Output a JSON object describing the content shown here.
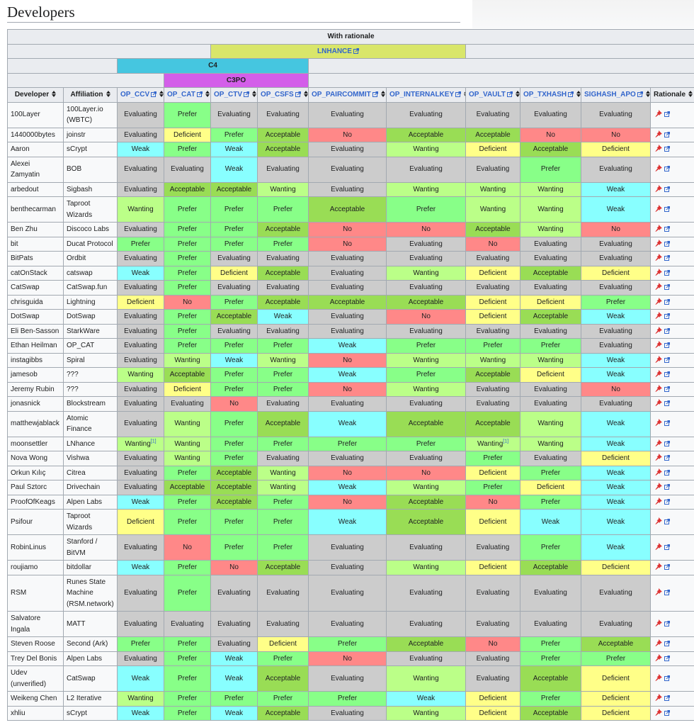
{
  "page": {
    "title": "Developers"
  },
  "table": {
    "caption": "With rationale",
    "groups": {
      "lnhance": "LNHANCE",
      "c4": "C4",
      "c3po": "C3PO"
    },
    "columns": [
      "Developer",
      "Affiliation",
      "OP_CCV",
      "OP_CAT",
      "OP_CTV",
      "OP_CSFS",
      "OP_PAIRCOMMIT",
      "OP_INTERNALKEY",
      "OP_VAULT",
      "OP_TXHASH",
      "SIGHASH_APO",
      "Rationale"
    ],
    "rows": [
      [
        "100Layer",
        "100Layer.io (WBTC)",
        "Evaluating",
        "Prefer",
        "Evaluating",
        "Evaluating",
        "Evaluating",
        "Evaluating",
        "Evaluating",
        "Evaluating",
        "Evaluating"
      ],
      [
        "1440000bytes",
        "joinstr",
        "Evaluating",
        "Deficient",
        "Prefer",
        "Acceptable",
        "No",
        "Acceptable",
        "Acceptable",
        "No",
        "No"
      ],
      [
        "Aaron",
        "sCrypt",
        "Weak",
        "Prefer",
        "Weak",
        "Acceptable",
        "Evaluating",
        "Wanting",
        "Deficient",
        "Acceptable",
        "Deficient"
      ],
      [
        "Alexei Zamyatin",
        "BOB",
        "Evaluating",
        "Evaluating",
        "Weak",
        "Evaluating",
        "Evaluating",
        "Evaluating",
        "Evaluating",
        "Prefer",
        "Evaluating"
      ],
      [
        "arbedout",
        "Sigbash",
        "Evaluating",
        "Acceptable",
        "Acceptable",
        "Wanting",
        "Evaluating",
        "Wanting",
        "Wanting",
        "Wanting",
        "Weak"
      ],
      [
        "benthecarman",
        "Taproot Wizards",
        "Wanting",
        "Prefer",
        "Prefer",
        "Prefer",
        "Acceptable",
        "Prefer",
        "Wanting",
        "Wanting",
        "Weak"
      ],
      [
        "Ben Zhu",
        "Discoco Labs",
        "Evaluating",
        "Prefer",
        "Prefer",
        "Acceptable",
        "No",
        "No",
        "Acceptable",
        "Wanting",
        "No"
      ],
      [
        "bit",
        "Ducat Protocol",
        "Prefer",
        "Prefer",
        "Prefer",
        "Prefer",
        "No",
        "Evaluating",
        "No",
        "Evaluating",
        "Evaluating"
      ],
      [
        "BitPats",
        "Ordbit",
        "Evaluating",
        "Prefer",
        "Evaluating",
        "Evaluating",
        "Evaluating",
        "Evaluating",
        "Evaluating",
        "Evaluating",
        "Evaluating"
      ],
      [
        "catOnStack",
        "catswap",
        "Weak",
        "Prefer",
        "Deficient",
        "Acceptable",
        "Evaluating",
        "Wanting",
        "Deficient",
        "Acceptable",
        "Deficient"
      ],
      [
        "CatSwap",
        "CatSwap.fun",
        "Evaluating",
        "Prefer",
        "Evaluating",
        "Evaluating",
        "Evaluating",
        "Evaluating",
        "Evaluating",
        "Evaluating",
        "Evaluating"
      ],
      [
        "chrisguida",
        "Lightning",
        "Deficient",
        "No",
        "Prefer",
        "Acceptable",
        "Acceptable",
        "Acceptable",
        "Deficient",
        "Deficient",
        "Prefer"
      ],
      [
        "DotSwap",
        "DotSwap",
        "Evaluating",
        "Prefer",
        "Acceptable",
        "Weak",
        "Evaluating",
        "No",
        "Deficient",
        "Acceptable",
        "Weak"
      ],
      [
        "Eli Ben-Sasson",
        "StarkWare",
        "Evaluating",
        "Prefer",
        "Evaluating",
        "Evaluating",
        "Evaluating",
        "Evaluating",
        "Evaluating",
        "Evaluating",
        "Evaluating"
      ],
      [
        "Ethan Heilman",
        "OP_CAT",
        "Evaluating",
        "Prefer",
        "Prefer",
        "Prefer",
        "Weak",
        "Prefer",
        "Prefer",
        "Prefer",
        "Evaluating"
      ],
      [
        "instagibbs",
        "Spiral",
        "Evaluating",
        "Wanting",
        "Weak",
        "Wanting",
        "No",
        "Wanting",
        "Wanting",
        "Wanting",
        "Weak"
      ],
      [
        "jamesob",
        "???",
        "Wanting",
        "Acceptable",
        "Prefer",
        "Prefer",
        "Weak",
        "Prefer",
        "Acceptable",
        "Deficient",
        "Weak"
      ],
      [
        "Jeremy Rubin",
        "???",
        "Evaluating",
        "Deficient",
        "Prefer",
        "Prefer",
        "No",
        "Wanting",
        "Evaluating",
        "Evaluating",
        "No"
      ],
      [
        "jonasnick",
        "Blockstream",
        "Evaluating",
        "Evaluating",
        "No",
        "Evaluating",
        "Evaluating",
        "Evaluating",
        "Evaluating",
        "Evaluating",
        "Evaluating"
      ],
      [
        "matthewjablack",
        "Atomic Finance",
        "Evaluating",
        "Wanting",
        "Prefer",
        "Acceptable",
        "Weak",
        "Acceptable",
        "Acceptable",
        "Wanting",
        "Weak"
      ],
      [
        "moonsettler",
        "LNhance",
        {
          "text": "Wanting",
          "ref": "[1]"
        },
        "Wanting",
        "Prefer",
        "Prefer",
        "Prefer",
        "Prefer",
        {
          "text": "Wanting",
          "ref": "[1]"
        },
        "Wanting",
        "Weak"
      ],
      [
        "Nova Wong",
        "Vishwa",
        "Evaluating",
        "Wanting",
        "Prefer",
        "Evaluating",
        "Evaluating",
        "Evaluating",
        "Prefer",
        "Evaluating",
        "Deficient"
      ],
      [
        "Orkun Kılıç",
        "Citrea",
        "Evaluating",
        "Prefer",
        "Acceptable",
        "Wanting",
        "No",
        "No",
        "Deficient",
        "Prefer",
        "Weak"
      ],
      [
        "Paul Sztorc",
        "Drivechain",
        "Evaluating",
        "Acceptable",
        "Acceptable",
        "Wanting",
        "Weak",
        "Wanting",
        "Prefer",
        "Deficient",
        "Weak"
      ],
      [
        "ProofOfKeags",
        "Alpen Labs",
        "Weak",
        "Prefer",
        "Acceptable",
        "Prefer",
        "No",
        "Acceptable",
        "No",
        "Prefer",
        "Weak"
      ],
      [
        "Psifour",
        "Taproot Wizards",
        "Deficient",
        "Prefer",
        "Prefer",
        "Prefer",
        "Weak",
        "Acceptable",
        "Deficient",
        "Weak",
        "Weak"
      ],
      [
        "RobinLinus",
        "Stanford / BitVM",
        "Evaluating",
        "No",
        "Prefer",
        "Prefer",
        "Evaluating",
        "Evaluating",
        "Evaluating",
        "Prefer",
        "Weak"
      ],
      [
        "roujiamo",
        "bitdollar",
        "Weak",
        "Prefer",
        "No",
        "Acceptable",
        "Evaluating",
        "Wanting",
        "Deficient",
        "Acceptable",
        "Deficient"
      ],
      [
        "RSM",
        "Runes State Machine (RSM.network)",
        "Evaluating",
        "Prefer",
        "Evaluating",
        "Evaluating",
        "Evaluating",
        "Evaluating",
        "Evaluating",
        "Evaluating",
        "Evaluating"
      ],
      [
        "Salvatore Ingala",
        "MATT",
        "Evaluating",
        "Evaluating",
        "Evaluating",
        "Evaluating",
        "Evaluating",
        "Evaluating",
        "Evaluating",
        "Evaluating",
        "Evaluating"
      ],
      [
        "Steven Roose",
        "Second (Ark)",
        "Prefer",
        "Prefer",
        "Evaluating",
        "Deficient",
        "Prefer",
        "Acceptable",
        "No",
        "Prefer",
        "Acceptable"
      ],
      [
        "Trey Del Bonis",
        "Alpen Labs",
        "Evaluating",
        "Prefer",
        "Weak",
        "Prefer",
        "No",
        "Evaluating",
        "Evaluating",
        "Prefer",
        "Prefer"
      ],
      [
        "Udev (unverified)",
        "CatSwap",
        "Weak",
        "Prefer",
        "Weak",
        "Acceptable",
        "Evaluating",
        "Wanting",
        "Evaluating",
        "Acceptable",
        "Deficient"
      ],
      [
        "Weikeng Chen",
        "L2 Iterative",
        "Wanting",
        "Prefer",
        "Prefer",
        "Prefer",
        "Prefer",
        "Weak",
        "Deficient",
        "Prefer",
        "Deficient"
      ],
      [
        "xhliu",
        "sCrypt",
        "Weak",
        "Prefer",
        "Weak",
        "Acceptable",
        "Evaluating",
        "Wanting",
        "Deficient",
        "Acceptable",
        "Deficient"
      ]
    ]
  }
}
